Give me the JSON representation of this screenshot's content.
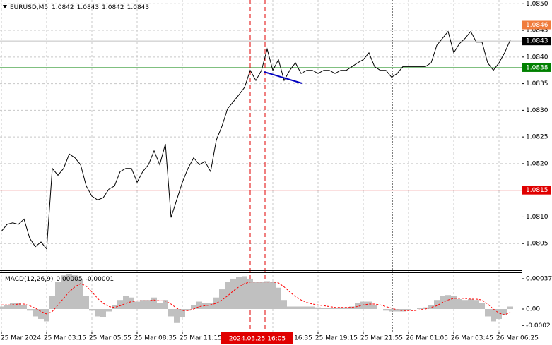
{
  "chart_data": [
    {
      "type": "line",
      "title": "EURUSD,M5",
      "ohlc": [
        1.0842,
        1.0843,
        1.0842,
        1.0843
      ],
      "x": [
        0,
        4,
        8,
        12,
        16,
        20,
        24,
        28,
        32,
        36,
        40,
        44,
        48,
        52,
        56,
        60,
        64,
        68,
        72,
        76,
        80,
        84,
        88,
        92,
        96,
        100,
        104,
        108,
        112,
        116,
        120,
        124,
        128,
        132,
        136,
        140,
        144,
        148,
        152,
        156,
        160,
        164,
        168,
        172,
        176,
        180,
        184,
        188,
        192,
        196,
        200,
        204,
        208,
        212,
        216,
        220,
        224,
        228,
        232,
        236,
        240,
        244,
        248,
        252,
        256,
        260,
        264,
        268,
        272,
        276,
        280,
        284,
        288,
        292,
        296,
        300,
        304,
        308,
        312,
        316,
        320,
        324,
        328,
        332,
        336,
        340,
        344,
        348,
        352,
        356,
        360
      ],
      "series": [
        {
          "color": "#000000",
          "values": [
            1.08073,
            1.08086,
            1.08089,
            1.08086,
            1.08096,
            1.0806,
            1.08044,
            1.08053,
            1.0804,
            1.08191,
            1.08178,
            1.08191,
            1.08218,
            1.08211,
            1.08198,
            1.08158,
            1.08139,
            1.08132,
            1.08136,
            1.08152,
            1.08158,
            1.08185,
            1.08191,
            1.08191,
            1.08165,
            1.08185,
            1.08198,
            1.08224,
            1.08198,
            1.08237,
            1.08099,
            1.08132,
            1.08165,
            1.08191,
            1.08211,
            1.08198,
            1.08204,
            1.08185,
            1.08244,
            1.0827,
            1.08303,
            1.08316,
            1.08329,
            1.08343,
            1.08375,
            1.08356,
            1.08375,
            1.08415,
            1.08375,
            1.08395,
            1.08356,
            1.08375,
            1.08389,
            1.08369,
            1.08375,
            1.08375,
            1.08369,
            1.08375,
            1.08375,
            1.08369,
            1.08375,
            1.08375,
            1.08382,
            1.08389,
            1.08395,
            1.08408,
            1.08382,
            1.08375,
            1.08375,
            1.08362,
            1.08369,
            1.08382,
            1.08382,
            1.08382,
            1.08382,
            1.08382,
            1.08389,
            1.08422,
            1.08435,
            1.08448,
            1.08408,
            1.08425,
            1.08435,
            1.08448,
            1.08428,
            1.08428,
            1.08389,
            1.08375,
            1.08389,
            1.08408,
            1.08432
          ]
        }
      ],
      "xlim": [
        0,
        368
      ],
      "ylim": [
        1.08,
        1.08507
      ],
      "xticks": [
        {
          "value": 0,
          "label": "25 Mar 2024"
        },
        {
          "value": 32,
          "label": "25 Mar 03:15"
        },
        {
          "value": 64,
          "label": "25 Mar 05:55"
        },
        {
          "value": 96,
          "label": "25 Mar 08:35"
        },
        {
          "value": 128,
          "label": "25 Mar 11:15"
        },
        {
          "value": 192,
          "label": "16:35"
        },
        {
          "value": 224,
          "label": "25 Mar 19:15"
        },
        {
          "value": 256,
          "label": "25 Mar 21:55"
        },
        {
          "value": 288,
          "label": "26 Mar 01:05"
        },
        {
          "value": 320,
          "label": "26 Mar 03:45"
        },
        {
          "value": 352,
          "label": "26 Mar 06:25"
        }
      ],
      "yticks": [
        {
          "value": 1.085,
          "label": "1.0850"
        },
        1.0845,
        {
          "value": 1.084,
          "label": "1.0840"
        },
        1.0835,
        {
          "value": 1.083,
          "label": "1.0830"
        },
        1.0825,
        {
          "value": 1.082,
          "label": "1.0820"
        },
        {
          "value": 1.081,
          "label": "1.0810"
        },
        1.0805
      ],
      "grid": true,
      "levels": [
        {
          "value": 1.0846,
          "color": "#f07c3c"
        },
        {
          "value": 1.0843,
          "color": "#000000",
          "line_color": "#c0c0c0"
        },
        {
          "value": 1.0838,
          "color": "#008000"
        },
        {
          "value": 1.0815,
          "color": "#e00000"
        }
      ],
      "vlines": [
        {
          "x": 176,
          "color": "#e00000",
          "style": "dashed"
        },
        {
          "x": 186.5,
          "color": "#e00000",
          "style": "dashed",
          "label": "2024.03.25 16:05"
        },
        {
          "x": 276.5,
          "color": "#000000",
          "style": "dotted"
        }
      ]
    },
    {
      "type": "macd",
      "title": "MACD(12,26,9)",
      "readings": [
        5e-05,
        -1e-05
      ],
      "series": [
        {
          "type": "bar",
          "color": "#c0c0c0",
          "values": [
            3e-05,
            5e-05,
            7e-05,
            7e-05,
            5e-05,
            -2e-05,
            -9e-05,
            -0.00012,
            -0.00015,
            0.00016,
            0.00033,
            0.00041,
            0.00043,
            0.00041,
            0.00037,
            0.00016,
            -2e-05,
            -9e-05,
            -0.0001,
            -3e-05,
            5e-05,
            0.00011,
            0.00016,
            0.00014,
            9e-05,
            0.00011,
            0.00011,
            0.00014,
            7e-05,
            0.00011,
            -9e-05,
            -0.00017,
            -0.0001,
            -2e-05,
            5e-05,
            9e-05,
            7e-05,
            7e-05,
            0.00014,
            0.00024,
            0.00033,
            0.00037,
            0.00039,
            0.0004,
            0.00037,
            0.00033,
            0.00033,
            0.00034,
            0.00033,
            0.00026,
            0.00011,
            3e-05,
            3e-05,
            3e-05,
            3e-05,
            3e-05,
            2e-05,
            1e-05,
            1e-05,
            1e-05,
            2e-05,
            2e-05,
            3e-05,
            7e-05,
            9e-05,
            9e-05,
            5e-05,
            0,
            -2e-05,
            -3e-05,
            -3e-05,
            -3e-05,
            -2e-05,
            0,
            1e-05,
            2e-05,
            5e-05,
            0.00011,
            0.00016,
            0.00017,
            0.00016,
            0.00012,
            0.00011,
            0.00012,
            0.00011,
            7e-05,
            -9e-05,
            -0.00015,
            -0.00012,
            -7e-05,
            3e-05
          ]
        },
        {
          "type": "line",
          "color": "#ff0000",
          "values": [
            5e-05,
            5e-05,
            5e-05,
            6e-05,
            6e-05,
            4e-05,
            1e-05,
            -3e-05,
            -6e-05,
            -3e-05,
            5e-05,
            0.00013,
            0.00021,
            0.00027,
            0.00031,
            0.00028,
            0.00021,
            0.00013,
            7e-05,
            3e-05,
            2e-05,
            4e-05,
            7e-05,
            9e-05,
            0.0001,
            0.0001,
            0.0001,
            0.00011,
            0.0001,
            0.0001,
            6e-05,
            1e-05,
            -2e-05,
            -2e-05,
            0,
            3e-05,
            4e-05,
            5e-05,
            7e-05,
            0.00011,
            0.00016,
            0.00022,
            0.00027,
            0.00031,
            0.00033,
            0.00033,
            0.00033,
            0.00033,
            0.00033,
            0.00032,
            0.00027,
            0.00021,
            0.00015,
            0.00011,
            8e-05,
            6e-05,
            5e-05,
            4e-05,
            3e-05,
            2e-05,
            2e-05,
            2e-05,
            2e-05,
            3e-05,
            5e-05,
            6e-05,
            6e-05,
            5e-05,
            3e-05,
            1e-05,
            -1e-05,
            -2e-05,
            -2e-05,
            -2e-05,
            -1e-05,
            0,
            2e-05,
            4e-05,
            8e-05,
            0.00011,
            0.00013,
            0.00013,
            0.00013,
            0.00012,
            0.00012,
            0.00011,
            6e-05,
            0,
            -5e-05,
            -7e-05,
            -4e-05
          ]
        }
      ],
      "ylim": [
        -0.000275,
        0.000447
      ],
      "yticks": [
        0.00037,
        {
          "value": 0,
          "label": "0.00"
        },
        -0.0002
      ]
    }
  ]
}
